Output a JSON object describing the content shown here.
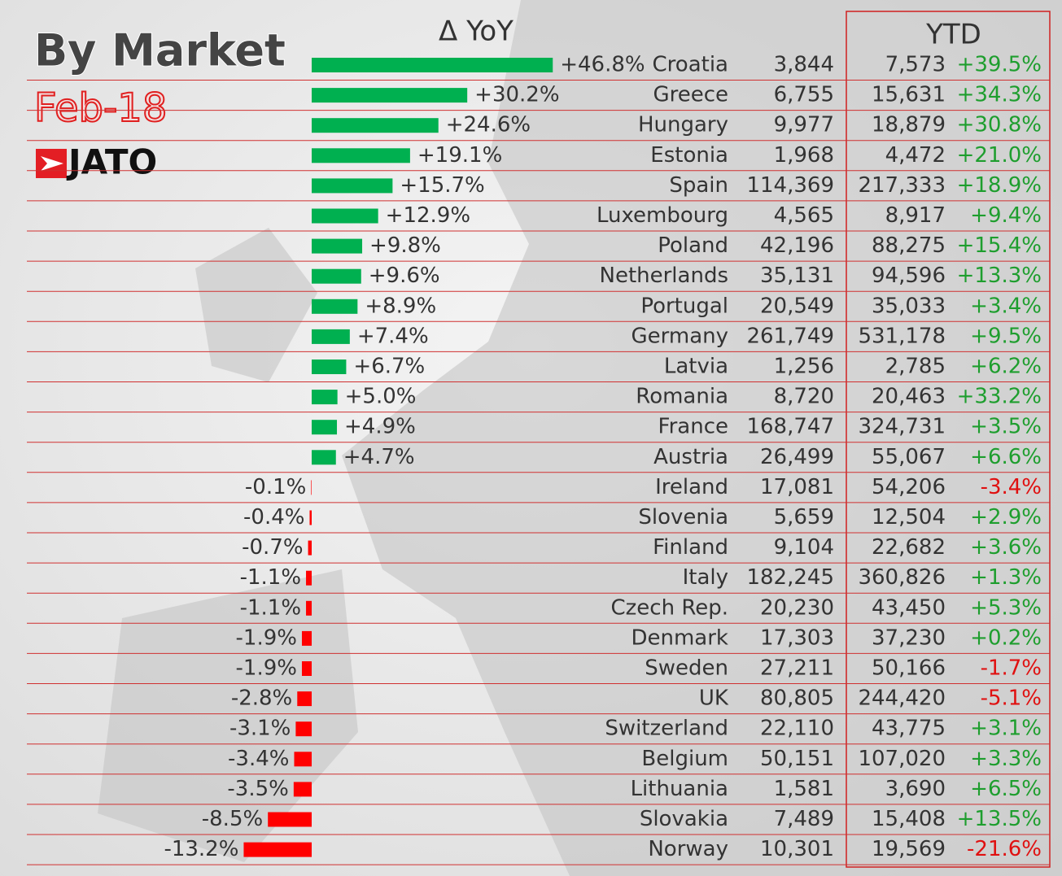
{
  "chart_data": {
    "type": "bar",
    "title": "By Market",
    "subtitle": "Feb-18",
    "logo": "JATO",
    "bar_header": "Δ YoY",
    "ytd_header": "YTD",
    "positive_color": "#00b050",
    "negative_color": "#ff0000",
    "categories": [
      "Croatia",
      "Greece",
      "Hungary",
      "Estonia",
      "Spain",
      "Luxembourg",
      "Poland",
      "Netherlands",
      "Portugal",
      "Germany",
      "Latvia",
      "Romania",
      "France",
      "Austria",
      "Ireland",
      "Slovenia",
      "Finland",
      "Italy",
      "Czech Rep.",
      "Denmark",
      "Sweden",
      "UK",
      "Switzerland",
      "Belgium",
      "Lithuania",
      "Slovakia",
      "Norway"
    ],
    "values": [
      46.8,
      30.2,
      24.6,
      19.1,
      15.7,
      12.9,
      9.8,
      9.6,
      8.9,
      7.4,
      6.7,
      5.0,
      4.9,
      4.7,
      -0.1,
      -0.4,
      -0.7,
      -1.1,
      -1.1,
      -1.9,
      -1.9,
      -2.8,
      -3.1,
      -3.4,
      -3.5,
      -8.5,
      -13.2
    ],
    "value_labels": [
      "+46.8%",
      "+30.2%",
      "+24.6%",
      "+19.1%",
      "+15.7%",
      "+12.9%",
      "+9.8%",
      "+9.6%",
      "+8.9%",
      "+7.4%",
      "+6.7%",
      "+5.0%",
      "+4.9%",
      "+4.7%",
      "-0.1%",
      "-0.4%",
      "-0.7%",
      "-1.1%",
      "-1.1%",
      "-1.9%",
      "-1.9%",
      "-2.8%",
      "-3.1%",
      "-3.4%",
      "-3.5%",
      "-8.5%",
      "-13.2%"
    ],
    "volume": [
      "3,844",
      "6,755",
      "9,977",
      "1,968",
      "114,369",
      "4,565",
      "42,196",
      "35,131",
      "20,549",
      "261,749",
      "1,256",
      "8,720",
      "168,747",
      "26,499",
      "17,081",
      "5,659",
      "9,104",
      "182,245",
      "20,230",
      "17,303",
      "27,211",
      "80,805",
      "22,110",
      "50,151",
      "1,581",
      "7,489",
      "10,301"
    ],
    "ytd_volume": [
      "7,573",
      "15,631",
      "18,879",
      "4,472",
      "217,333",
      "8,917",
      "88,275",
      "94,596",
      "35,033",
      "531,178",
      "2,785",
      "20,463",
      "324,731",
      "55,067",
      "54,206",
      "12,504",
      "22,682",
      "360,826",
      "43,450",
      "37,230",
      "50,166",
      "244,420",
      "43,775",
      "107,020",
      "3,690",
      "15,408",
      "19,569"
    ],
    "ytd_change": [
      "+39.5%",
      "+34.3%",
      "+30.8%",
      "+21.0%",
      "+18.9%",
      "+9.4%",
      "+15.4%",
      "+13.3%",
      "+3.4%",
      "+9.5%",
      "+6.2%",
      "+33.2%",
      "+3.5%",
      "+6.6%",
      "-3.4%",
      "+2.9%",
      "+3.6%",
      "+1.3%",
      "+5.3%",
      "+0.2%",
      "-1.7%",
      "-5.1%",
      "+3.1%",
      "+3.3%",
      "+6.5%",
      "+13.5%",
      "-21.6%"
    ]
  }
}
